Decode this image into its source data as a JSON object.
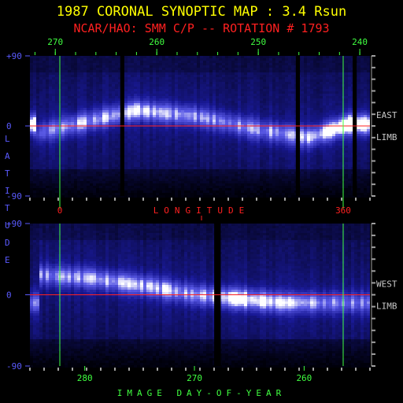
{
  "titles": {
    "line1": "1987 CORONAL SYNOPTIC MAP : 3.4 Rsun",
    "line2": "NCAR/HAO: SMM C/P -- ROTATION # 1793"
  },
  "colors": {
    "title1": "#ffff00",
    "title2": "#ff2020",
    "axis_blue": "#5a5aff",
    "tick_green": "#40ff40",
    "marker_red": "#ff2020",
    "frame_gray": "#a0a0a0",
    "data_low": "#000018",
    "data_high": "#ffffff"
  },
  "labels": {
    "latitude_vertical": "LATITUDE",
    "longitude": "LONGITUDE",
    "image_doy": "IMAGE DAY-OF-YEAR",
    "east_1": "EAST",
    "east_2": "LIMB",
    "west_1": "WEST",
    "west_2": "LIMB",
    "lon_0": "0",
    "lon_360": "360"
  },
  "chart_data": [
    {
      "type": "heatmap",
      "panel": "East limb",
      "x_axis": "Carrington longitude",
      "x_ticks": [
        "270",
        "260",
        "250",
        "240"
      ],
      "x_range": [
        272.5,
        239
      ],
      "y_ticks": [
        "+90",
        "0",
        "-90"
      ],
      "y_range": [
        -90,
        90
      ],
      "right_label": [
        "EAST",
        "LIMB"
      ],
      "colormap": "black-blue-white",
      "streamer_belt": [
        {
          "x": 272,
          "lat": -10,
          "brightness": 0.35
        },
        {
          "x": 268,
          "lat": 2,
          "brightness": 0.55
        },
        {
          "x": 262,
          "lat": 20,
          "brightness": 0.6
        },
        {
          "x": 256,
          "lat": 12,
          "brightness": 0.5
        },
        {
          "x": 250,
          "lat": -5,
          "brightness": 0.5
        },
        {
          "x": 245,
          "lat": -15,
          "brightness": 0.55
        },
        {
          "x": 241,
          "lat": 2,
          "brightness": 0.9
        }
      ],
      "data_gaps": [
        [
          263.6,
          263.2
        ],
        [
          246.3,
          245.9
        ],
        [
          240.7,
          240.3
        ]
      ]
    },
    {
      "type": "heatmap",
      "panel": "West limb",
      "x_axis": "Image day-of-year",
      "x_ticks": [
        "280",
        "270",
        "260"
      ],
      "x_range": [
        285,
        254
      ],
      "y_ticks": [
        "+90",
        "0",
        "-90"
      ],
      "y_range": [
        -90,
        90
      ],
      "right_label": [
        "WEST",
        "LIMB"
      ],
      "colormap": "black-blue-white",
      "streamer_belt": [
        {
          "x": 284,
          "lat": 25,
          "brightness": 0.45
        },
        {
          "x": 279,
          "lat": 20,
          "brightness": 0.55
        },
        {
          "x": 274,
          "lat": 10,
          "brightness": 0.6
        },
        {
          "x": 270,
          "lat": 0,
          "brightness": 0.5
        },
        {
          "x": 266,
          "lat": -5,
          "brightness": 0.75
        },
        {
          "x": 262,
          "lat": -10,
          "brightness": 0.6
        },
        {
          "x": 256,
          "lat": -10,
          "brightness": 0.45
        }
      ],
      "data_gaps": [
        [
          268.2,
          267.6
        ]
      ]
    }
  ]
}
